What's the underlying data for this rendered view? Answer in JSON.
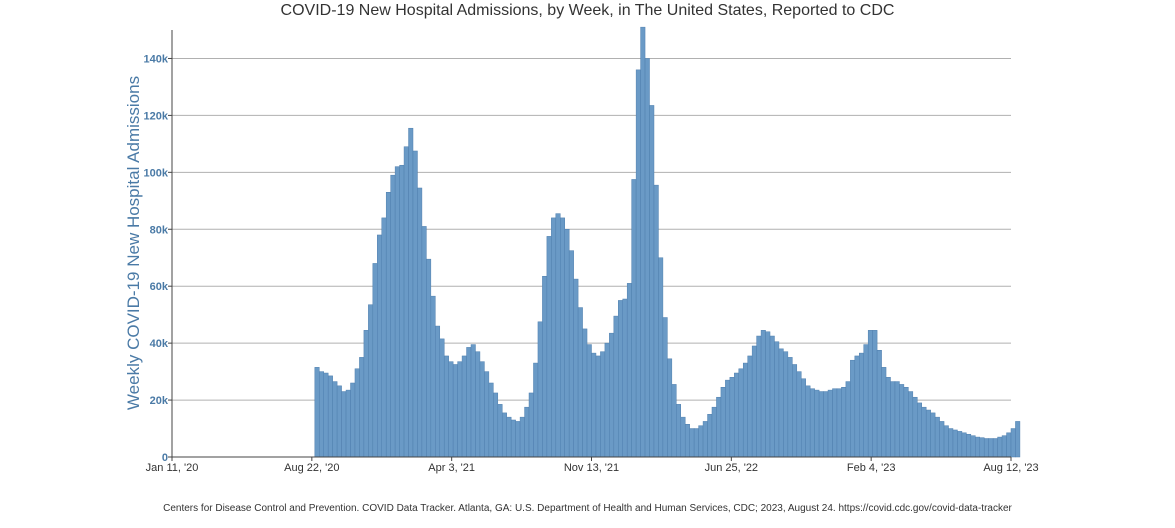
{
  "chart_data": {
    "type": "bar",
    "title": "COVID-19 New Hospital Admissions, by Week, in The United States, Reported to CDC",
    "xlabel": "",
    "ylabel": "Weekly COVID-19 New Hospital Admissions",
    "ylim": [
      0,
      150000
    ],
    "y_ticks": [
      0,
      20000,
      40000,
      60000,
      80000,
      100000,
      120000,
      140000
    ],
    "y_tick_labels": [
      "0",
      "20k",
      "40k",
      "60k",
      "80k",
      "100k",
      "120k",
      "140k"
    ],
    "x_tick_labels": [
      "Jan 11, '20",
      "Aug 22, '20",
      "Apr 3, '21",
      "Nov 13, '21",
      "Jun 25, '22",
      "Feb 4, '23",
      "Aug 12, '23"
    ],
    "grid": true,
    "bar_color": "#6a9ac6",
    "series": [
      {
        "name": "Weekly New Hospital Admissions",
        "start_week_index": 32,
        "values": [
          31500,
          30000,
          29500,
          28500,
          26500,
          25000,
          23000,
          23500,
          26000,
          31000,
          35000,
          44500,
          53500,
          68000,
          78000,
          84000,
          93000,
          99000,
          102000,
          102500,
          109000,
          115500,
          107500,
          94500,
          81000,
          69500,
          56500,
          46000,
          41500,
          35500,
          33500,
          32500,
          33500,
          35500,
          38500,
          39500,
          37000,
          33500,
          30000,
          26000,
          22500,
          18500,
          15500,
          14000,
          13000,
          12500,
          14000,
          17500,
          22500,
          33000,
          47500,
          63500,
          77500,
          84000,
          85500,
          84000,
          80000,
          72500,
          62500,
          52500,
          45000,
          39500,
          36500,
          35500,
          37000,
          40000,
          43500,
          49500,
          55000,
          55500,
          61000,
          97500,
          136000,
          151000,
          140000,
          123500,
          95500,
          70000,
          49000,
          34500,
          25500,
          18500,
          14000,
          11500,
          10000,
          10000,
          11000,
          12500,
          15000,
          17500,
          21000,
          24500,
          27000,
          28000,
          29500,
          31000,
          33000,
          35500,
          39000,
          42500,
          44500,
          44000,
          42500,
          40500,
          38000,
          37000,
          35000,
          32500,
          30000,
          27500,
          25000,
          24000,
          23500,
          23000,
          23000,
          23500,
          24000,
          24000,
          24500,
          26500,
          34000,
          35500,
          36500,
          39500,
          44500,
          44500,
          37500,
          31500,
          28000,
          26500,
          26500,
          25500,
          24500,
          23000,
          21000,
          19000,
          17500,
          16500,
          15500,
          14000,
          12500,
          11000,
          10000,
          9500,
          9000,
          8500,
          8000,
          7500,
          7000,
          6800,
          6500,
          6500,
          6500,
          7000,
          7500,
          8500,
          10000,
          12500
        ]
      }
    ]
  },
  "footer": {
    "citation": "Centers for Disease Control and Prevention. COVID Data Tracker. Atlanta, GA: U.S. Department of Health and Human Services, CDC; 2023, August 24. https://covid.cdc.gov/covid-data-tracker"
  }
}
